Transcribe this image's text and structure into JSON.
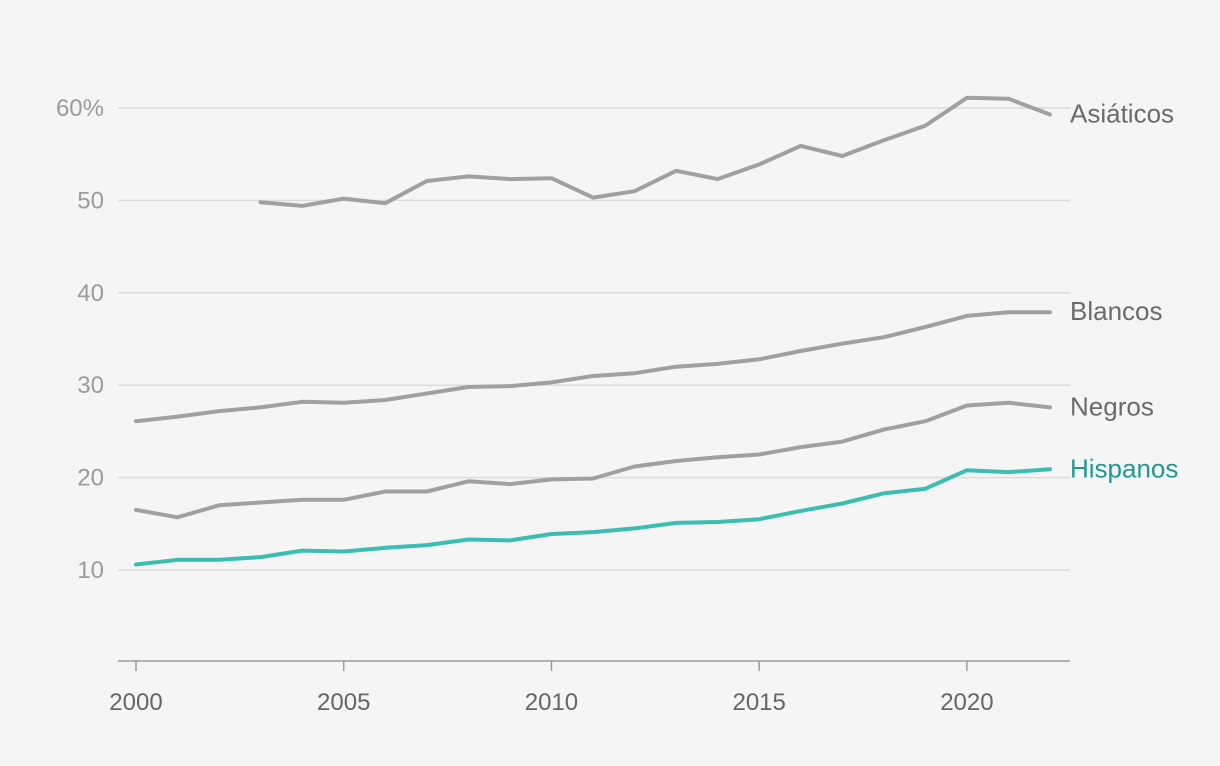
{
  "chart_data": {
    "type": "line",
    "title": "",
    "xlabel": "",
    "ylabel": "",
    "x": [
      2000,
      2001,
      2002,
      2003,
      2004,
      2005,
      2006,
      2007,
      2008,
      2009,
      2010,
      2011,
      2012,
      2013,
      2014,
      2015,
      2016,
      2017,
      2018,
      2019,
      2020,
      2021,
      2022
    ],
    "xlim": [
      2000,
      2022.5
    ],
    "ylim": [
      0,
      63
    ],
    "y_ticks": [
      10,
      20,
      30,
      40,
      50,
      60
    ],
    "y_tick_labels": [
      "10",
      "20",
      "30",
      "40",
      "50",
      "60%"
    ],
    "x_ticks": [
      2000,
      2005,
      2010,
      2015,
      2020
    ],
    "x_tick_labels": [
      "2000",
      "2005",
      "2010",
      "2015",
      "2020"
    ],
    "grid": "horizontal",
    "legend": "direct-labels-right",
    "series": [
      {
        "name": "Asiáticos",
        "color": "#a0a0a0",
        "label_color": "#6b6b6b",
        "values": [
          null,
          null,
          null,
          49.8,
          49.4,
          50.2,
          49.7,
          52.1,
          52.6,
          52.3,
          52.4,
          50.3,
          51.0,
          53.2,
          52.3,
          53.9,
          55.9,
          54.8,
          56.5,
          58.1,
          61.1,
          61.0,
          59.3
        ]
      },
      {
        "name": "Blancos",
        "color": "#a0a0a0",
        "label_color": "#6b6b6b",
        "values": [
          26.1,
          26.6,
          27.2,
          27.6,
          28.2,
          28.1,
          28.4,
          29.1,
          29.8,
          29.9,
          30.3,
          31.0,
          31.3,
          32.0,
          32.3,
          32.8,
          33.7,
          34.5,
          35.2,
          36.3,
          37.5,
          37.9,
          37.9
        ]
      },
      {
        "name": "Negros",
        "color": "#a0a0a0",
        "label_color": "#6b6b6b",
        "values": [
          16.5,
          15.7,
          17.0,
          17.3,
          17.6,
          17.6,
          18.5,
          18.5,
          19.6,
          19.3,
          19.8,
          19.9,
          21.2,
          21.8,
          22.2,
          22.5,
          23.3,
          23.9,
          25.2,
          26.1,
          27.8,
          28.1,
          27.6
        ]
      },
      {
        "name": "Hispanos",
        "color": "#3bbdb1",
        "label_color": "#1f9a90",
        "values": [
          10.6,
          11.1,
          11.1,
          11.4,
          12.1,
          12.0,
          12.4,
          12.7,
          13.3,
          13.2,
          13.9,
          14.1,
          14.5,
          15.1,
          15.2,
          15.5,
          16.4,
          17.2,
          18.3,
          18.8,
          20.8,
          20.6,
          20.9
        ]
      }
    ]
  }
}
